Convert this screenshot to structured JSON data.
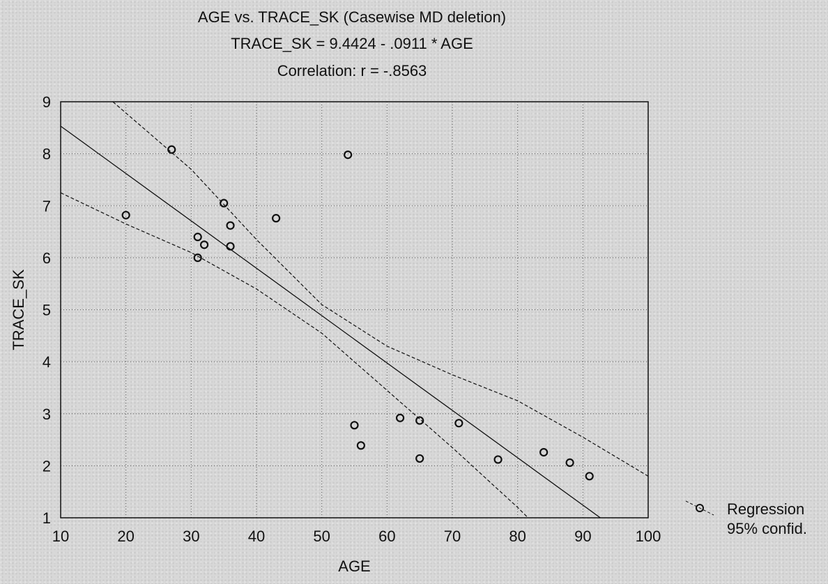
{
  "chart_data": {
    "type": "scatter",
    "title": "AGE vs. TRACE_SK (Casewise MD deletion)",
    "subtitle": "TRACE_SK = 9.4424 - .0911 * AGE",
    "annotation": "Correlation: r = -.8563",
    "xlabel": "AGE",
    "ylabel": "TRACE_SK",
    "xlim": [
      10,
      100
    ],
    "ylim": [
      1,
      9
    ],
    "xticks": [
      "10",
      "20",
      "30",
      "40",
      "50",
      "60",
      "70",
      "80",
      "90",
      "100"
    ],
    "yticks": [
      "1",
      "2",
      "3",
      "4",
      "5",
      "6",
      "7",
      "8",
      "9"
    ],
    "grid": true,
    "legend_position": "right",
    "legend": [
      "Regression",
      "95% confid."
    ],
    "regression": {
      "intercept": 9.4424,
      "slope": -0.0911
    },
    "confidence_band": {
      "upper": [
        [
          18,
          9.0
        ],
        [
          30,
          7.7
        ],
        [
          40,
          6.35
        ],
        [
          50,
          5.1
        ],
        [
          60,
          4.3
        ],
        [
          70,
          3.75
        ],
        [
          80,
          3.25
        ],
        [
          90,
          2.55
        ],
        [
          100,
          1.8
        ]
      ],
      "lower": [
        [
          10,
          7.25
        ],
        [
          20,
          6.65
        ],
        [
          30,
          6.1
        ],
        [
          40,
          5.4
        ],
        [
          50,
          4.55
        ],
        [
          60,
          3.45
        ],
        [
          70,
          2.35
        ],
        [
          80,
          1.2
        ],
        [
          82,
          0.95
        ]
      ]
    },
    "points": [
      {
        "x": 20,
        "y": 6.82
      },
      {
        "x": 27,
        "y": 8.08
      },
      {
        "x": 31,
        "y": 6.4
      },
      {
        "x": 31,
        "y": 6.0
      },
      {
        "x": 32,
        "y": 6.25
      },
      {
        "x": 35,
        "y": 7.05
      },
      {
        "x": 36,
        "y": 6.62
      },
      {
        "x": 36,
        "y": 6.22
      },
      {
        "x": 43,
        "y": 6.76
      },
      {
        "x": 54,
        "y": 7.98
      },
      {
        "x": 55,
        "y": 2.78
      },
      {
        "x": 56,
        "y": 2.39
      },
      {
        "x": 62,
        "y": 2.92
      },
      {
        "x": 65,
        "y": 2.87
      },
      {
        "x": 65,
        "y": 2.14
      },
      {
        "x": 71,
        "y": 2.82
      },
      {
        "x": 77,
        "y": 2.12
      },
      {
        "x": 84,
        "y": 2.26
      },
      {
        "x": 88,
        "y": 2.06
      },
      {
        "x": 91,
        "y": 1.8
      }
    ]
  }
}
